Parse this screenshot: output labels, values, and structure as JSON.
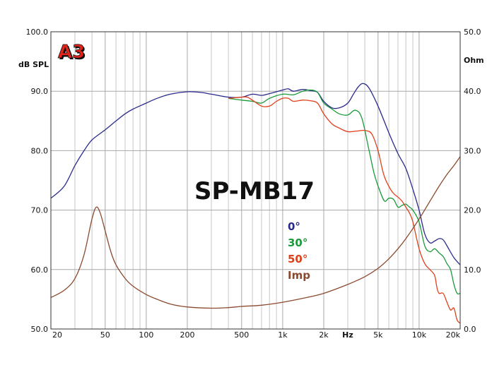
{
  "chart_data": {
    "type": "line",
    "title": "SP-MB17",
    "logo": "A3",
    "x_axis": {
      "scale": "log",
      "range": [
        20,
        20000
      ],
      "tick_labels": [
        {
          "value": 20,
          "label": "20"
        },
        {
          "value": 50,
          "label": "50"
        },
        {
          "value": 100,
          "label": "100"
        },
        {
          "value": 200,
          "label": "200"
        },
        {
          "value": 500,
          "label": "500"
        },
        {
          "value": 1000,
          "label": "1k"
        },
        {
          "value": 2000,
          "label": "2k"
        },
        {
          "value": 5000,
          "label": "5k"
        },
        {
          "value": 10000,
          "label": "10k"
        },
        {
          "value": 20000,
          "label": "20k"
        }
      ],
      "unit_label": "Hz",
      "unit_label_value": 3000,
      "minor_gridlines": [
        30,
        40,
        60,
        70,
        80,
        90,
        300,
        400,
        600,
        700,
        800,
        900,
        3000,
        4000,
        6000,
        7000,
        8000,
        9000
      ]
    },
    "y_left": {
      "label": "dB SPL",
      "range": [
        50,
        100
      ],
      "ticks": [
        "50.0",
        "60.0",
        "70.0",
        "80.0",
        "90.0",
        "100.0"
      ]
    },
    "y_right": {
      "label": "Ohm",
      "range": [
        0,
        50
      ],
      "ticks": [
        "0.0",
        "10.0",
        "20.0",
        "30.0",
        "40.0",
        "50.0"
      ]
    },
    "grid": true,
    "legend_position": "center-right",
    "series": [
      {
        "name": "0°",
        "axis": "left",
        "color": "#2a2a8c",
        "points": [
          [
            20,
            72.0
          ],
          [
            25,
            74.0
          ],
          [
            30,
            77.5
          ],
          [
            35,
            80.0
          ],
          [
            40,
            81.8
          ],
          [
            50,
            83.5
          ],
          [
            60,
            85.0
          ],
          [
            70,
            86.2
          ],
          [
            80,
            87.0
          ],
          [
            100,
            88.0
          ],
          [
            120,
            88.8
          ],
          [
            150,
            89.5
          ],
          [
            200,
            89.9
          ],
          [
            250,
            89.8
          ],
          [
            300,
            89.5
          ],
          [
            400,
            89.0
          ],
          [
            500,
            89.0
          ],
          [
            600,
            89.5
          ],
          [
            700,
            89.3
          ],
          [
            800,
            89.6
          ],
          [
            1000,
            90.2
          ],
          [
            1100,
            90.4
          ],
          [
            1200,
            90.0
          ],
          [
            1400,
            90.3
          ],
          [
            1600,
            90.1
          ],
          [
            1800,
            89.8
          ],
          [
            2000,
            88.3
          ],
          [
            2300,
            87.2
          ],
          [
            2600,
            87.2
          ],
          [
            3000,
            88.0
          ],
          [
            3300,
            89.5
          ],
          [
            3600,
            90.8
          ],
          [
            3900,
            91.3
          ],
          [
            4300,
            90.5
          ],
          [
            5000,
            87.5
          ],
          [
            6000,
            83.0
          ],
          [
            7000,
            79.5
          ],
          [
            8000,
            77.0
          ],
          [
            9000,
            73.5
          ],
          [
            10000,
            70.0
          ],
          [
            11000,
            66.0
          ],
          [
            12000,
            64.5
          ],
          [
            13000,
            64.8
          ],
          [
            14000,
            65.2
          ],
          [
            15000,
            65.0
          ],
          [
            16000,
            64.0
          ],
          [
            18000,
            62.0
          ],
          [
            20000,
            60.8
          ]
        ]
      },
      {
        "name": "30°",
        "axis": "left",
        "color": "#1a9a3a",
        "points": [
          [
            400,
            88.8
          ],
          [
            500,
            88.5
          ],
          [
            600,
            88.3
          ],
          [
            700,
            88.0
          ],
          [
            800,
            88.8
          ],
          [
            1000,
            89.5
          ],
          [
            1200,
            89.4
          ],
          [
            1400,
            90.0
          ],
          [
            1600,
            90.2
          ],
          [
            1800,
            89.8
          ],
          [
            2000,
            88.0
          ],
          [
            2300,
            87.0
          ],
          [
            2600,
            86.2
          ],
          [
            3000,
            86.0
          ],
          [
            3400,
            86.8
          ],
          [
            3800,
            85.5
          ],
          [
            4300,
            80.0
          ],
          [
            4700,
            76.0
          ],
          [
            5200,
            73.0
          ],
          [
            5600,
            71.5
          ],
          [
            6000,
            72.0
          ],
          [
            6500,
            71.8
          ],
          [
            7000,
            70.5
          ],
          [
            7500,
            70.8
          ],
          [
            8000,
            71.0
          ],
          [
            8500,
            70.5
          ],
          [
            9000,
            70.0
          ],
          [
            10000,
            68.0
          ],
          [
            11000,
            64.0
          ],
          [
            12000,
            63.0
          ],
          [
            13000,
            63.5
          ],
          [
            14000,
            62.8
          ],
          [
            15000,
            62.2
          ],
          [
            16000,
            61.0
          ],
          [
            17000,
            60.0
          ],
          [
            18000,
            57.5
          ],
          [
            19000,
            56.0
          ],
          [
            20000,
            56.0
          ]
        ]
      },
      {
        "name": "50°",
        "axis": "left",
        "color": "#e0401a",
        "points": [
          [
            400,
            88.8
          ],
          [
            500,
            89.0
          ],
          [
            550,
            89.0
          ],
          [
            600,
            88.5
          ],
          [
            700,
            87.5
          ],
          [
            800,
            87.5
          ],
          [
            900,
            88.3
          ],
          [
            1000,
            88.8
          ],
          [
            1100,
            88.8
          ],
          [
            1200,
            88.3
          ],
          [
            1400,
            88.5
          ],
          [
            1600,
            88.4
          ],
          [
            1800,
            88.0
          ],
          [
            2000,
            86.2
          ],
          [
            2300,
            84.5
          ],
          [
            2600,
            83.8
          ],
          [
            3000,
            83.2
          ],
          [
            3500,
            83.3
          ],
          [
            4000,
            83.4
          ],
          [
            4500,
            82.8
          ],
          [
            5000,
            80.0
          ],
          [
            5500,
            76.0
          ],
          [
            6000,
            74.0
          ],
          [
            6500,
            72.8
          ],
          [
            7000,
            72.2
          ],
          [
            7500,
            71.5
          ],
          [
            8000,
            70.5
          ],
          [
            8500,
            69.5
          ],
          [
            9000,
            68.0
          ],
          [
            10000,
            63.5
          ],
          [
            11000,
            61.0
          ],
          [
            12000,
            60.0
          ],
          [
            13000,
            59.0
          ],
          [
            13500,
            57.0
          ],
          [
            14000,
            56.0
          ],
          [
            15000,
            56.0
          ],
          [
            16000,
            54.5
          ],
          [
            17000,
            53.2
          ],
          [
            18000,
            53.5
          ],
          [
            19000,
            51.5
          ],
          [
            20000,
            51.0
          ]
        ]
      },
      {
        "name": "Imp",
        "axis": "right",
        "color": "#8b4a2e",
        "points": [
          [
            20,
            5.3
          ],
          [
            25,
            6.5
          ],
          [
            30,
            8.5
          ],
          [
            35,
            12.5
          ],
          [
            40,
            18.5
          ],
          [
            43,
            20.5
          ],
          [
            46,
            19.5
          ],
          [
            50,
            16.5
          ],
          [
            55,
            13.0
          ],
          [
            60,
            10.8
          ],
          [
            70,
            8.5
          ],
          [
            80,
            7.2
          ],
          [
            100,
            5.8
          ],
          [
            120,
            5.0
          ],
          [
            150,
            4.2
          ],
          [
            200,
            3.7
          ],
          [
            300,
            3.5
          ],
          [
            400,
            3.6
          ],
          [
            500,
            3.8
          ],
          [
            700,
            4.0
          ],
          [
            1000,
            4.5
          ],
          [
            1500,
            5.3
          ],
          [
            2000,
            6.0
          ],
          [
            3000,
            7.5
          ],
          [
            4000,
            8.8
          ],
          [
            5000,
            10.2
          ],
          [
            6000,
            11.8
          ],
          [
            7000,
            13.5
          ],
          [
            8000,
            15.2
          ],
          [
            10000,
            18.5
          ],
          [
            12000,
            21.5
          ],
          [
            14000,
            24.0
          ],
          [
            16000,
            26.0
          ],
          [
            18000,
            27.5
          ],
          [
            20000,
            29.0
          ]
        ]
      }
    ]
  }
}
